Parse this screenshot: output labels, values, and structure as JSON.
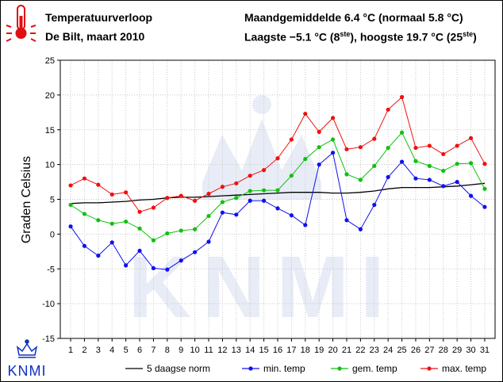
{
  "header": {
    "title": "Temperatuurverloop",
    "subtitle": "De Bilt, maart 2010",
    "monthly_avg": "Maandgemiddelde 6.4 °C (normaal 5.8 °C)",
    "extremes_prefix": "Laagste −5.1 °C (8",
    "extremes_sup1": "ste",
    "extremes_mid": "), hoogste 19.7 °C (25",
    "extremes_sup2": "ste",
    "extremes_suffix": ")"
  },
  "logo": {
    "text": "KNMI"
  },
  "icons": {
    "thermometer": "thermometer-icon",
    "crown": "crown-icon"
  },
  "chart_data": {
    "type": "line",
    "ylabel": "Graden Celsius",
    "xlabel": "",
    "ylim": [
      -15,
      25
    ],
    "yticks": [
      -15,
      -10,
      -5,
      0,
      5,
      10,
      15,
      20,
      25
    ],
    "x": [
      1,
      2,
      3,
      4,
      5,
      6,
      7,
      8,
      9,
      10,
      11,
      12,
      13,
      14,
      15,
      16,
      17,
      18,
      19,
      20,
      21,
      22,
      23,
      24,
      25,
      26,
      27,
      28,
      29,
      30,
      31
    ],
    "grid": true,
    "legend_position": "bottom",
    "series": [
      {
        "name": "5 daagse norm",
        "color": "#000000",
        "marker": false,
        "values": [
          4.4,
          4.5,
          4.5,
          4.6,
          4.7,
          4.9,
          5.0,
          5.2,
          5.3,
          5.3,
          5.4,
          5.5,
          5.6,
          5.7,
          5.8,
          5.9,
          6.0,
          6.0,
          6.0,
          5.9,
          5.9,
          6.0,
          6.2,
          6.5,
          6.7,
          6.7,
          6.7,
          6.8,
          6.9,
          7.1,
          7.3
        ]
      },
      {
        "name": "min. temp",
        "color": "#1010f0",
        "marker": true,
        "values": [
          1.1,
          -1.7,
          -3.1,
          -1.2,
          -4.5,
          -2.4,
          -4.9,
          -5.1,
          -3.8,
          -2.6,
          -1.1,
          3.1,
          2.8,
          4.8,
          4.8,
          3.7,
          2.7,
          1.3,
          10.0,
          11.7,
          2.0,
          0.7,
          4.2,
          8.2,
          10.4,
          8.0,
          7.8,
          6.9,
          7.5,
          5.5,
          3.9
        ]
      },
      {
        "name": "gem. temp",
        "color": "#10c010",
        "marker": true,
        "values": [
          4.2,
          2.9,
          2.0,
          1.5,
          1.8,
          0.8,
          -0.9,
          0.1,
          0.5,
          0.7,
          2.6,
          4.6,
          5.2,
          6.2,
          6.3,
          6.3,
          8.4,
          10.8,
          12.5,
          13.6,
          8.6,
          7.8,
          9.8,
          12.4,
          14.6,
          10.5,
          9.8,
          9.1,
          10.1,
          10.2,
          6.5
        ]
      },
      {
        "name": "max. temp",
        "color": "#f01010",
        "marker": true,
        "values": [
          7.0,
          8.0,
          7.1,
          5.7,
          6.0,
          3.2,
          3.8,
          5.2,
          5.5,
          4.8,
          5.8,
          6.8,
          7.3,
          8.4,
          9.2,
          10.9,
          13.6,
          17.3,
          14.7,
          16.7,
          12.2,
          12.5,
          13.7,
          17.9,
          19.7,
          12.4,
          12.7,
          11.5,
          12.7,
          13.8,
          10.1
        ]
      }
    ]
  }
}
